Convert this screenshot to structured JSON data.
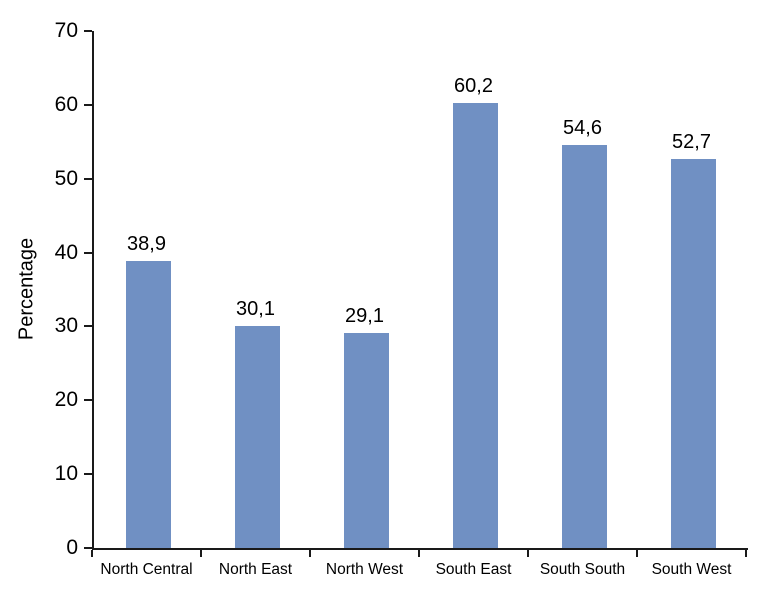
{
  "chart_data": {
    "type": "bar",
    "title": "",
    "xlabel": "",
    "ylabel": "Percentage",
    "categories": [
      "North Central",
      "North East",
      "North West",
      "South East",
      "South South",
      "South West"
    ],
    "values": [
      38.9,
      30.1,
      29.1,
      60.2,
      54.6,
      52.7
    ],
    "value_labels": [
      "38,9",
      "30,1",
      "29,1",
      "60,2",
      "54,6",
      "52,7"
    ],
    "ylim": [
      0,
      70
    ],
    "ytick_step": 10,
    "ytick_labels": [
      "0",
      "10",
      "20",
      "30",
      "40",
      "50",
      "60",
      "70"
    ],
    "grid": false,
    "legend": false,
    "bar_color": "#7090C3",
    "axis_color": "#1a1a1a",
    "text_color": "#000000",
    "background_color": "#ffffff"
  }
}
